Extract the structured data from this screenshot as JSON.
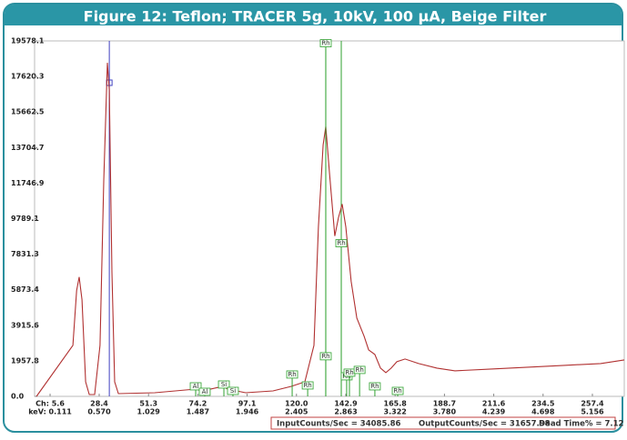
{
  "chart_data": {
    "type": "line",
    "title": "Figure 12: Teflon; TRACER 5g, 10kV, 100 µA, Beige Filter",
    "x": [
      -0.7,
      16.2,
      17.9,
      19.1,
      20.4,
      22.1,
      23.8,
      26.3,
      28.8,
      30.5,
      32.2,
      33.1,
      34.3,
      35.6,
      37.3,
      54.2,
      73.2,
      76.2,
      85.9,
      88.0,
      96.4,
      109.1,
      117.6,
      123.9,
      128.1,
      130.2,
      132.4,
      133.6,
      135.3,
      137.8,
      139.5,
      141.2,
      142.9,
      145.4,
      148.0,
      151.4,
      153.5,
      156.4,
      159.0,
      161.5,
      164.0,
      166.6,
      170.4,
      176.7,
      185.2,
      193.6,
      210.5,
      227.4,
      244.3,
      261.2,
      272.2
    ],
    "series": [
      {
        "color": "#b03030",
        "values": [
          0,
          2811,
          5823,
          6576,
          5321,
          803,
          100,
          100,
          2811,
          11847,
          18373,
          16867,
          6827,
          803,
          150,
          200,
          400,
          300,
          550,
          400,
          200,
          300,
          550,
          800,
          2811,
          9337,
          13855,
          14859,
          12349,
          8835,
          9839,
          10592,
          9337,
          6325,
          4317,
          3313,
          2560,
          2309,
          1556,
          1305,
          1556,
          1908,
          2058,
          1808,
          1556,
          1406,
          1506,
          1606,
          1707,
          1807,
          2008
        ]
      }
    ],
    "xlim": [
      -1.6,
      272.2
    ],
    "ylim": [
      0,
      19578.1
    ],
    "yticks": [
      {
        "value": 0,
        "label": "0.0"
      },
      1957.8,
      3915.6,
      5873.4,
      7831.3,
      9789.1,
      11746.9,
      13704.7,
      15662.5,
      17620.3,
      19578.1
    ],
    "xticks": [
      {
        "value": 5.6,
        "label": "Ch: 5.6"
      },
      28.4,
      51.3,
      74.2,
      97.1,
      {
        "value": 120,
        "label": "120.0"
      },
      142.9,
      165.8,
      188.7,
      211.6,
      234.5,
      257.4
    ],
    "kev_ticks": [
      {
        "value": 5.6,
        "label": "keV: 0.111"
      },
      {
        "value": 28.4,
        "label": "0.570"
      },
      {
        "value": 51.3,
        "label": "1.029"
      },
      {
        "value": 74.2,
        "label": "1.487"
      },
      {
        "value": 97.1,
        "label": "1.946"
      },
      {
        "value": 120,
        "label": "2.405"
      },
      {
        "value": 142.9,
        "label": "2.863"
      },
      {
        "value": 165.8,
        "label": "3.322"
      },
      {
        "value": 188.7,
        "label": "3.780"
      },
      {
        "value": 211.6,
        "label": "4.239"
      },
      {
        "value": 234.5,
        "label": "4.698"
      },
      {
        "value": 257.4,
        "label": "5.156"
      }
    ],
    "marker_lines": [
      {
        "x": 33.1,
        "color": "#4040c0"
      },
      {
        "x": 133.6,
        "color": "#30a030"
      },
      {
        "x": 140.8,
        "color": "#30a030"
      }
    ],
    "annotations": [
      {
        "text": "Rh",
        "x": 133.6,
        "y": 19450
      },
      {
        "text": "Rh",
        "x": 140.8,
        "y": 8434
      },
      {
        "text": "Al",
        "x": 73.2,
        "y": 552
      },
      {
        "text": "Al",
        "x": 77.4,
        "y": 251
      },
      {
        "text": "Si",
        "x": 86.3,
        "y": 653
      },
      {
        "text": "Si",
        "x": 90.5,
        "y": 301
      },
      {
        "text": "Rh",
        "x": 118.0,
        "y": 1205
      },
      {
        "text": "Rh",
        "x": 125.2,
        "y": 602
      },
      {
        "text": "Rh",
        "x": 133.6,
        "y": 2209
      },
      {
        "text": "Rh",
        "x": 143.3,
        "y": 1104
      },
      {
        "text": "Rh",
        "x": 144.6,
        "y": 1305
      },
      {
        "text": "Rh",
        "x": 149.3,
        "y": 1456
      },
      {
        "text": "Rh",
        "x": 156.4,
        "y": 552
      },
      {
        "text": "Rh",
        "x": 167.0,
        "y": 301
      }
    ],
    "footer": [
      "InputCounts/Sec = 34085.86",
      "OutputCounts/Sec = 31657.98",
      "Dead Time% = 7.12"
    ]
  }
}
